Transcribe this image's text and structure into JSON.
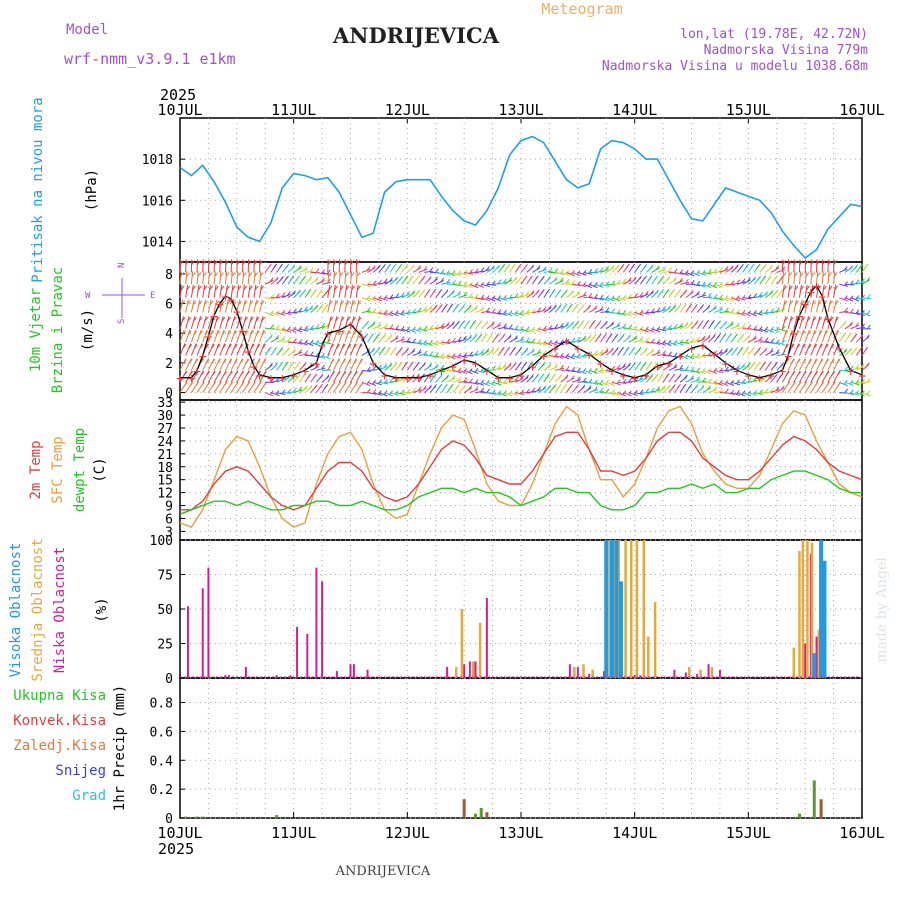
{
  "header": {
    "model_label": "Model",
    "model_name": "wrf-nmm_v3.9.1  e1km",
    "title": "ANDRIJEVICA",
    "meteogram": "Meteogram",
    "lonlat": "lon,lat (19.78E, 42.72N)",
    "altitude": "Nadmorska Visina 779m",
    "model_altitude": "Nadmorska Visina u modelu 1038.68m",
    "footer_title": "ANDRIJEVICA",
    "watermark": "made by Angel"
  },
  "colors": {
    "pressure": "#1ea0e6",
    "temp2m": "#e63c3c",
    "sfc": "#e6a03c",
    "dew": "#22c822",
    "cloud_high": "#1e9ae6",
    "cloud_mid": "#e6a83c",
    "cloud_low": "#d21e96",
    "model_text": "#a050d2",
    "meteogram_text": "#e6b464"
  },
  "time_axis": {
    "year": "2025",
    "ticks": [
      "10JUL",
      "11JUL",
      "12JUL",
      "13JUL",
      "14JUL",
      "15JUL",
      "16JUL"
    ],
    "day_start": 10,
    "day_end": 16
  },
  "panels": {
    "pressure": {
      "label": "Pritisak na nivou mora",
      "unit": "(hPa)",
      "yticks": [
        "1014",
        "1016",
        "1018"
      ]
    },
    "wind": {
      "label1": "10m Vjetar",
      "label2": "Brzina i Pravac",
      "unit": "(m/s)",
      "yticks": [
        "0",
        "2",
        "4",
        "6",
        "8"
      ],
      "compass_n": "N",
      "compass_e": "E",
      "compass_w": "W",
      "compass_s": "S"
    },
    "temp": {
      "label1": "2m Temp",
      "label2": "SFC Temp",
      "label3": "dewpt Temp",
      "unit": "(C)",
      "yticks": [
        "3",
        "6",
        "9",
        "12",
        "15",
        "18",
        "21",
        "24",
        "27",
        "30",
        "33"
      ]
    },
    "cloud": {
      "label1": "Visoka Oblacnost",
      "label2": "Srednja Oblacnost",
      "label3": "Niska Oblacnost",
      "unit": "(%)",
      "yticks": [
        "0",
        "25",
        "50",
        "75",
        "100"
      ]
    },
    "precip": {
      "legend": [
        "Ukupna Kisa",
        "Konvek.Kisa",
        "Zaledj.Kisa",
        "Snijeg",
        "Grad"
      ],
      "legend_colors": [
        "#22c822",
        "#e63c3c",
        "#e6783c",
        "#3c3ce6",
        "#22c8c8"
      ],
      "unit": "1hr Precip (mm)",
      "yticks": [
        "0",
        "0.2",
        "0.4",
        "0.6",
        "0.8"
      ]
    }
  },
  "chart_data": [
    {
      "type": "line",
      "name": "pressure",
      "ylim": [
        1013,
        1020
      ],
      "x": [
        10.0,
        10.1,
        10.2,
        10.3,
        10.4,
        10.5,
        10.6,
        10.7,
        10.8,
        10.9,
        11.0,
        11.1,
        11.2,
        11.3,
        11.4,
        11.5,
        11.6,
        11.7,
        11.8,
        11.9,
        12.0,
        12.1,
        12.2,
        12.3,
        12.4,
        12.5,
        12.6,
        12.7,
        12.8,
        12.9,
        13.0,
        13.1,
        13.2,
        13.3,
        13.4,
        13.5,
        13.6,
        13.7,
        13.8,
        13.9,
        14.0,
        14.1,
        14.2,
        14.3,
        14.4,
        14.5,
        14.6,
        14.7,
        14.8,
        14.9,
        15.0,
        15.1,
        15.2,
        15.3,
        15.4,
        15.5,
        15.6,
        15.7,
        15.8,
        15.9,
        16.0
      ],
      "y": [
        1017.6,
        1017.2,
        1017.7,
        1016.9,
        1015.9,
        1014.7,
        1014.2,
        1014.0,
        1014.9,
        1016.6,
        1017.3,
        1017.2,
        1017.0,
        1017.1,
        1016.4,
        1015.3,
        1014.2,
        1014.4,
        1016.4,
        1016.9,
        1017.0,
        1017.0,
        1017.0,
        1016.2,
        1015.5,
        1015.0,
        1014.8,
        1015.5,
        1016.6,
        1018.2,
        1018.9,
        1019.1,
        1018.8,
        1017.9,
        1017.0,
        1016.6,
        1016.8,
        1018.5,
        1018.9,
        1018.8,
        1018.5,
        1018.0,
        1018.0,
        1017.0,
        1016.0,
        1015.1,
        1015.0,
        1015.8,
        1016.6,
        1016.4,
        1016.2,
        1016.0,
        1015.4,
        1014.5,
        1013.8,
        1013.2,
        1013.6,
        1014.6,
        1015.2,
        1015.8,
        1015.7
      ]
    },
    {
      "type": "line",
      "name": "wind-speed",
      "ylim": [
        -0.5,
        8.8
      ],
      "x": [
        10.0,
        10.1,
        10.15,
        10.2,
        10.25,
        10.3,
        10.35,
        10.4,
        10.45,
        10.5,
        10.55,
        10.6,
        10.65,
        10.7,
        10.8,
        10.9,
        11.0,
        11.1,
        11.2,
        11.25,
        11.3,
        11.4,
        11.5,
        11.6,
        11.7,
        11.8,
        11.9,
        12.0,
        12.1,
        12.2,
        12.3,
        12.4,
        12.5,
        12.6,
        12.7,
        12.8,
        12.9,
        13.0,
        13.1,
        13.2,
        13.3,
        13.4,
        13.5,
        13.6,
        13.7,
        13.8,
        13.9,
        14.0,
        14.1,
        14.2,
        14.3,
        14.4,
        14.5,
        14.6,
        14.7,
        14.8,
        14.9,
        15.0,
        15.1,
        15.2,
        15.3,
        15.35,
        15.4,
        15.45,
        15.5,
        15.55,
        15.6,
        15.65,
        15.7,
        15.8,
        15.9,
        16.0
      ],
      "y": [
        1.0,
        1.0,
        1.5,
        2.5,
        3.8,
        5.2,
        6.0,
        6.5,
        6.3,
        5.5,
        4.2,
        2.8,
        1.8,
        1.2,
        1.0,
        1.0,
        1.2,
        1.5,
        2.0,
        3.2,
        4.0,
        4.2,
        4.6,
        3.8,
        2.0,
        1.2,
        1.0,
        1.0,
        1.0,
        1.2,
        1.5,
        1.8,
        2.2,
        2.0,
        1.5,
        1.0,
        1.0,
        1.2,
        1.8,
        2.5,
        3.0,
        3.5,
        3.0,
        2.6,
        2.0,
        1.5,
        1.2,
        1.0,
        1.2,
        1.8,
        2.0,
        2.5,
        3.0,
        3.2,
        2.6,
        2.0,
        1.5,
        1.2,
        1.0,
        1.2,
        1.5,
        2.5,
        4.0,
        5.2,
        6.0,
        6.8,
        7.2,
        6.5,
        5.0,
        3.0,
        1.5,
        1.2
      ]
    },
    {
      "type": "line",
      "name": "temperature",
      "ylim": [
        1,
        33.5
      ],
      "series": [
        {
          "key": "sfc",
          "x": [
            10.0,
            10.1,
            10.2,
            10.3,
            10.4,
            10.5,
            10.6,
            10.7,
            10.8,
            10.9,
            11.0,
            11.1,
            11.2,
            11.3,
            11.4,
            11.5,
            11.6,
            11.7,
            11.8,
            11.9,
            12.0,
            12.1,
            12.2,
            12.3,
            12.4,
            12.5,
            12.6,
            12.7,
            12.8,
            12.9,
            13.0,
            13.1,
            13.2,
            13.3,
            13.4,
            13.5,
            13.6,
            13.7,
            13.8,
            13.9,
            14.0,
            14.1,
            14.2,
            14.3,
            14.4,
            14.5,
            14.6,
            14.7,
            14.8,
            14.9,
            15.0,
            15.1,
            15.2,
            15.3,
            15.4,
            15.5,
            15.6,
            15.7,
            15.8,
            15.9,
            16.0
          ],
          "y": [
            5,
            4,
            8,
            15,
            22,
            25,
            24,
            18,
            11,
            6,
            4,
            5,
            14,
            21,
            25,
            26,
            22,
            14,
            8,
            6,
            7,
            14,
            21,
            27,
            30,
            29,
            22,
            14,
            10,
            9,
            9,
            14,
            21,
            28,
            32,
            30,
            22,
            15,
            15,
            11,
            14,
            20,
            27,
            31,
            32,
            28,
            21,
            17,
            14,
            13,
            13,
            16,
            22,
            28,
            31,
            30,
            24,
            19,
            14,
            12,
            11
          ]
        },
        {
          "key": "t2m",
          "x": [
            10.0,
            10.1,
            10.2,
            10.3,
            10.4,
            10.5,
            10.6,
            10.7,
            10.8,
            10.9,
            11.0,
            11.1,
            11.2,
            11.3,
            11.4,
            11.5,
            11.6,
            11.7,
            11.8,
            11.9,
            12.0,
            12.1,
            12.2,
            12.3,
            12.4,
            12.5,
            12.6,
            12.7,
            12.8,
            12.9,
            13.0,
            13.1,
            13.2,
            13.3,
            13.4,
            13.5,
            13.6,
            13.7,
            13.8,
            13.9,
            14.0,
            14.1,
            14.2,
            14.3,
            14.4,
            14.5,
            14.6,
            14.7,
            14.8,
            14.9,
            15.0,
            15.1,
            15.2,
            15.3,
            15.4,
            15.5,
            15.6,
            15.7,
            15.8,
            15.9,
            16.0
          ],
          "y": [
            8,
            8,
            10,
            14,
            17,
            18,
            17,
            14,
            11,
            9,
            8,
            9,
            13,
            17,
            19,
            19,
            17,
            13,
            11,
            10,
            11,
            14,
            18,
            22,
            24,
            23,
            20,
            16,
            15,
            14,
            14,
            17,
            21,
            25,
            26,
            26,
            22,
            17,
            17,
            16,
            17,
            20,
            24,
            26,
            26,
            24,
            20,
            18,
            16,
            15,
            15,
            17,
            20,
            23,
            25,
            24,
            22,
            19,
            17,
            16,
            15
          ]
        },
        {
          "key": "dew",
          "x": [
            10.0,
            10.1,
            10.2,
            10.3,
            10.4,
            10.5,
            10.6,
            10.7,
            10.8,
            10.9,
            11.0,
            11.1,
            11.2,
            11.3,
            11.4,
            11.5,
            11.6,
            11.7,
            11.8,
            11.9,
            12.0,
            12.1,
            12.2,
            12.3,
            12.4,
            12.5,
            12.6,
            12.7,
            12.8,
            12.9,
            13.0,
            13.1,
            13.2,
            13.3,
            13.4,
            13.5,
            13.6,
            13.7,
            13.8,
            13.9,
            14.0,
            14.1,
            14.2,
            14.3,
            14.4,
            14.5,
            14.6,
            14.7,
            14.8,
            14.9,
            15.0,
            15.1,
            15.2,
            15.3,
            15.4,
            15.5,
            15.6,
            15.7,
            15.8,
            15.9,
            16.0
          ],
          "y": [
            7,
            8,
            9,
            10,
            10,
            9,
            10,
            9,
            8,
            8,
            9,
            9,
            10,
            10,
            9,
            9,
            10,
            9,
            8,
            8,
            9,
            11,
            12,
            13,
            13,
            12,
            13,
            12,
            12,
            11,
            9,
            10,
            11,
            13,
            13,
            12,
            12,
            9,
            8,
            8,
            9,
            12,
            12,
            13,
            13,
            14,
            13,
            14,
            12,
            12,
            13,
            13,
            15,
            16,
            17,
            17,
            16,
            15,
            13,
            12,
            12
          ]
        }
      ]
    },
    {
      "type": "bar",
      "name": "cloud-cover",
      "ylim": [
        0,
        100
      ],
      "series": [
        {
          "key": "low",
          "x": [
            10.07,
            10.2,
            10.25,
            10.4,
            10.43,
            10.58,
            10.85,
            10.97,
            11.03,
            11.12,
            11.2,
            11.25,
            11.38,
            11.5,
            11.53,
            11.65,
            12.35,
            12.5,
            12.55,
            12.6,
            12.7,
            13.43,
            13.5,
            13.6,
            13.73,
            14.0,
            14.05,
            14.35,
            14.45,
            14.55,
            14.65,
            14.75,
            15.5,
            15.55,
            15.6
          ],
          "y": [
            52,
            65,
            80,
            2,
            2,
            8,
            2,
            2,
            37,
            32,
            80,
            70,
            5,
            10,
            10,
            6,
            8,
            10,
            12,
            12,
            58,
            10,
            8,
            3,
            5,
            2,
            2,
            6,
            4,
            3,
            10,
            6,
            25,
            90,
            30
          ]
        },
        {
          "key": "mid",
          "x": [
            12.43,
            12.48,
            12.58,
            12.64,
            13.47,
            13.55,
            13.63,
            13.78,
            13.82,
            13.86,
            13.92,
            13.97,
            14.02,
            14.08,
            14.12,
            14.18,
            14.48,
            14.58,
            14.68,
            15.4,
            15.45,
            15.48,
            15.52,
            15.56,
            15.62
          ],
          "y": [
            8,
            50,
            12,
            40,
            8,
            10,
            6,
            100,
            100,
            100,
            100,
            100,
            100,
            100,
            30,
            55,
            8,
            6,
            8,
            22,
            92,
            100,
            100,
            98,
            35
          ]
        },
        {
          "key": "high",
          "x": [
            13.75,
            13.8,
            13.84,
            13.88,
            15.58,
            15.64,
            15.67
          ],
          "y": [
            100,
            100,
            100,
            70,
            18,
            100,
            85
          ]
        }
      ]
    },
    {
      "type": "bar",
      "name": "precipitation",
      "ylim": [
        0,
        0.97
      ],
      "series": [
        {
          "key": "total",
          "x": [
            10.05,
            10.15,
            10.2,
            10.85,
            12.6,
            12.65,
            15.45,
            15.58
          ],
          "y": [
            0.01,
            0.01,
            0.01,
            0.02,
            0.03,
            0.07,
            0.03,
            0.26
          ]
        },
        {
          "key": "conv",
          "x": [
            12.5,
            12.7,
            15.64
          ],
          "y": [
            0.13,
            0.04,
            0.13
          ]
        }
      ]
    }
  ],
  "wind_barbs": {
    "rows": [
      0.0,
      0.7,
      1.5,
      2.5,
      3.4,
      4.3,
      5.4,
      6.4,
      7.3,
      8.1
    ],
    "step": 0.05
  },
  "wind_symbols": {
    "marker": "+"
  }
}
